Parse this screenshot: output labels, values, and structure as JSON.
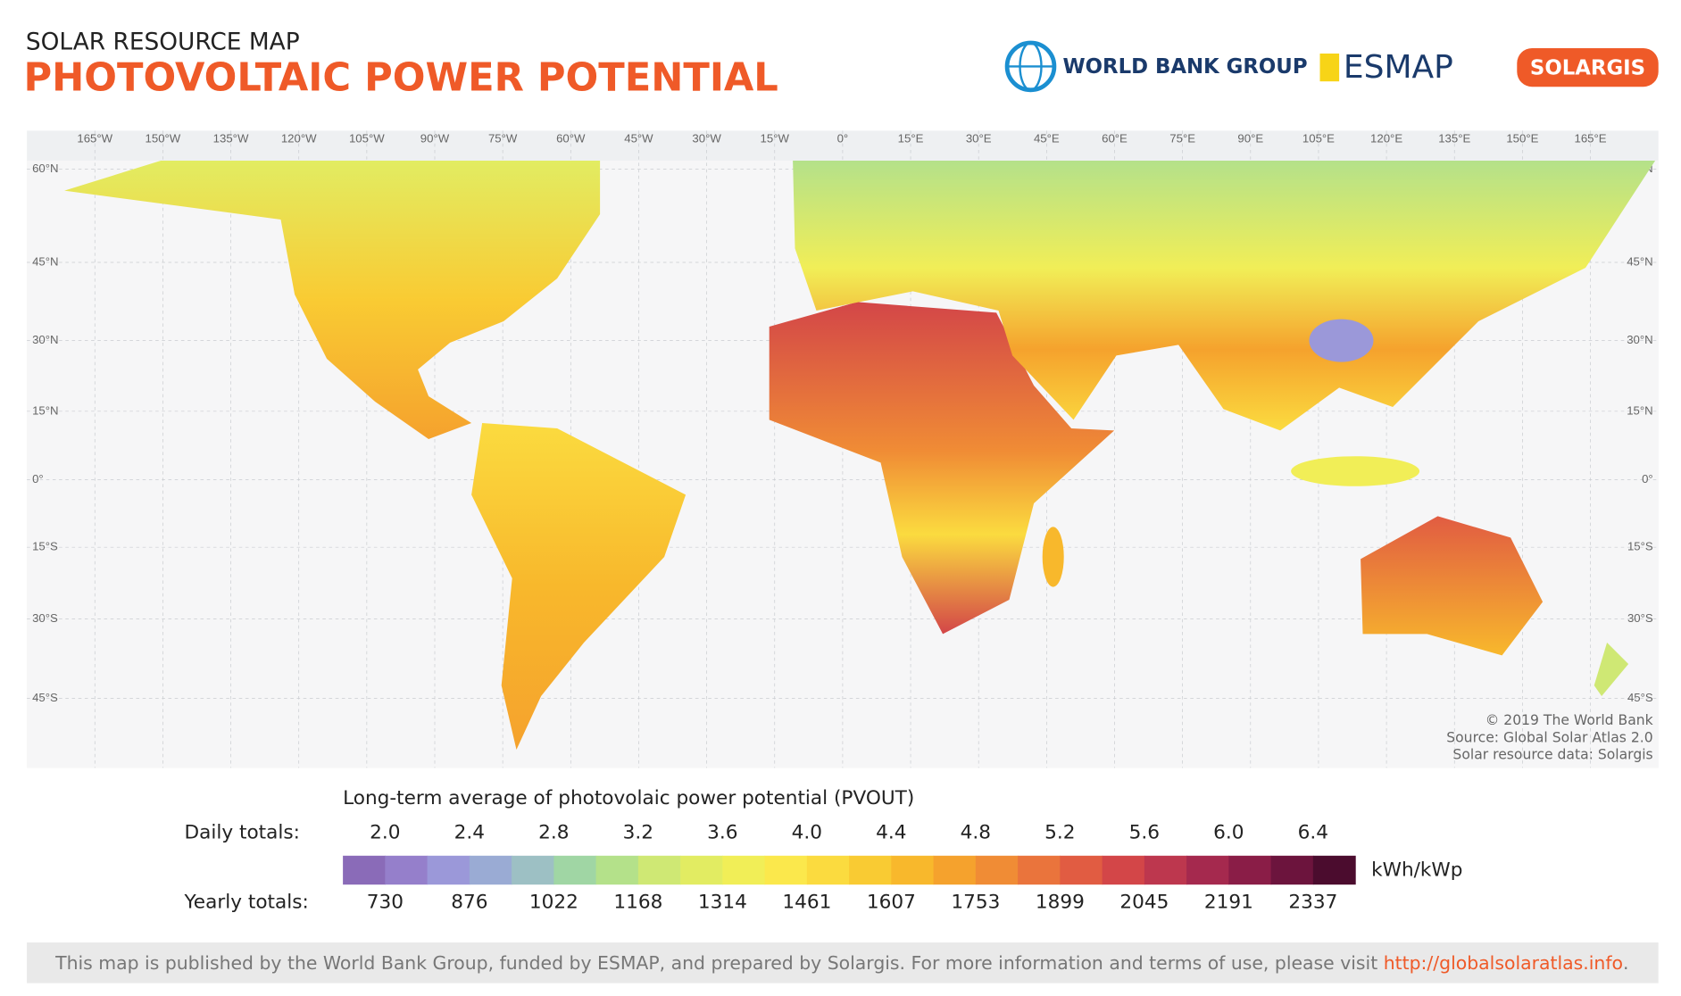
{
  "header": {
    "subtitle": "SOLAR RESOURCE MAP",
    "title": "PHOTOVOLTAIC POWER POTENTIAL",
    "logos": [
      "WORLD BANK GROUP",
      "ESMAP",
      "SOLARGIS"
    ]
  },
  "map": {
    "lon_labels": [
      "165°W",
      "150°W",
      "135°W",
      "120°W",
      "105°W",
      "90°W",
      "75°W",
      "60°W",
      "45°W",
      "30°W",
      "15°W",
      "0°",
      "15°E",
      "30°E",
      "45°E",
      "60°E",
      "75°E",
      "90°E",
      "105°E",
      "120°E",
      "135°E",
      "150°E",
      "165°E"
    ],
    "lat_labels": [
      "60°N",
      "45°N",
      "30°N",
      "15°N",
      "0°",
      "15°S",
      "30°S",
      "45°S"
    ],
    "credits": [
      "© 2019 The World Bank",
      "Source: Global Solar Atlas 2.0",
      "Solar resource data: Solargis"
    ]
  },
  "legend": {
    "title": "Long-term average of photovolaic power potential (PVOUT)",
    "daily_label": "Daily totals:",
    "daily": [
      "2.0",
      "2.4",
      "2.8",
      "3.2",
      "3.6",
      "4.0",
      "4.4",
      "4.8",
      "5.2",
      "5.6",
      "6.0",
      "6.4"
    ],
    "yearly_label": "Yearly totals:",
    "yearly": [
      730,
      876,
      1022,
      1168,
      1314,
      1461,
      1607,
      1753,
      1899,
      2045,
      2191,
      2337
    ],
    "unit": "kWh/kWp",
    "colors": [
      "#8a6bb8",
      "#957fcb",
      "#9b98d9",
      "#9aabd4",
      "#9dc0c4",
      "#a0d6a4",
      "#b4e18a",
      "#cfe874",
      "#e2ec62",
      "#f1ee57",
      "#fbe84c",
      "#fbdb3f",
      "#f9cb33",
      "#f8b82c",
      "#f5a22d",
      "#f08c35",
      "#ea743c",
      "#e15c42",
      "#d34648",
      "#bd374e",
      "#a5294e",
      "#8a1d47",
      "#6c143d",
      "#4b0c2e"
    ]
  },
  "footer": {
    "text": "This map is published by the World Bank Group, funded by ESMAP, and prepared by Solargis. For more information and terms of use, please visit ",
    "link": "http://globalsolaratlas.info",
    "end": "."
  }
}
